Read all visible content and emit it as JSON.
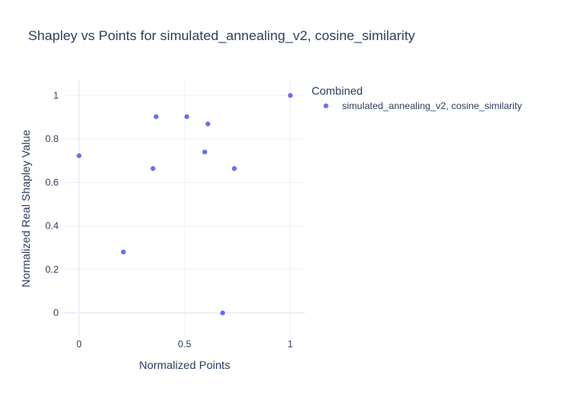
{
  "chart_data": {
    "type": "scatter",
    "title": "Shapley vs Points for simulated_annealing_v2, cosine_similarity",
    "xlabel": "Normalized Points",
    "ylabel": "Normalized Real Shapley Value",
    "xlim": [
      -0.07,
      1.07
    ],
    "ylim": [
      -0.11,
      1.07
    ],
    "x_ticks": [
      0,
      0.5,
      1
    ],
    "x_tick_labels": [
      "0",
      "0.5",
      "1"
    ],
    "y_ticks": [
      0,
      0.2,
      0.4,
      0.6,
      0.8,
      1
    ],
    "y_tick_labels": [
      "0",
      "0.2",
      "0.4",
      "0.6",
      "0.8",
      "1"
    ],
    "grid": true,
    "legend_title": "Combined",
    "legend_placement": "top-right-outside",
    "series": [
      {
        "name": "simulated_annealing_v2, cosine_similarity",
        "color": "#636efa",
        "points": [
          {
            "x": 0.0,
            "y": 0.723
          },
          {
            "x": 0.21,
            "y": 0.28
          },
          {
            "x": 0.35,
            "y": 0.664
          },
          {
            "x": 0.365,
            "y": 0.902
          },
          {
            "x": 0.51,
            "y": 0.902
          },
          {
            "x": 0.595,
            "y": 0.74
          },
          {
            "x": 0.61,
            "y": 0.869
          },
          {
            "x": 0.68,
            "y": 0.0
          },
          {
            "x": 0.735,
            "y": 0.664
          },
          {
            "x": 1.0,
            "y": 1.0
          }
        ]
      }
    ]
  }
}
